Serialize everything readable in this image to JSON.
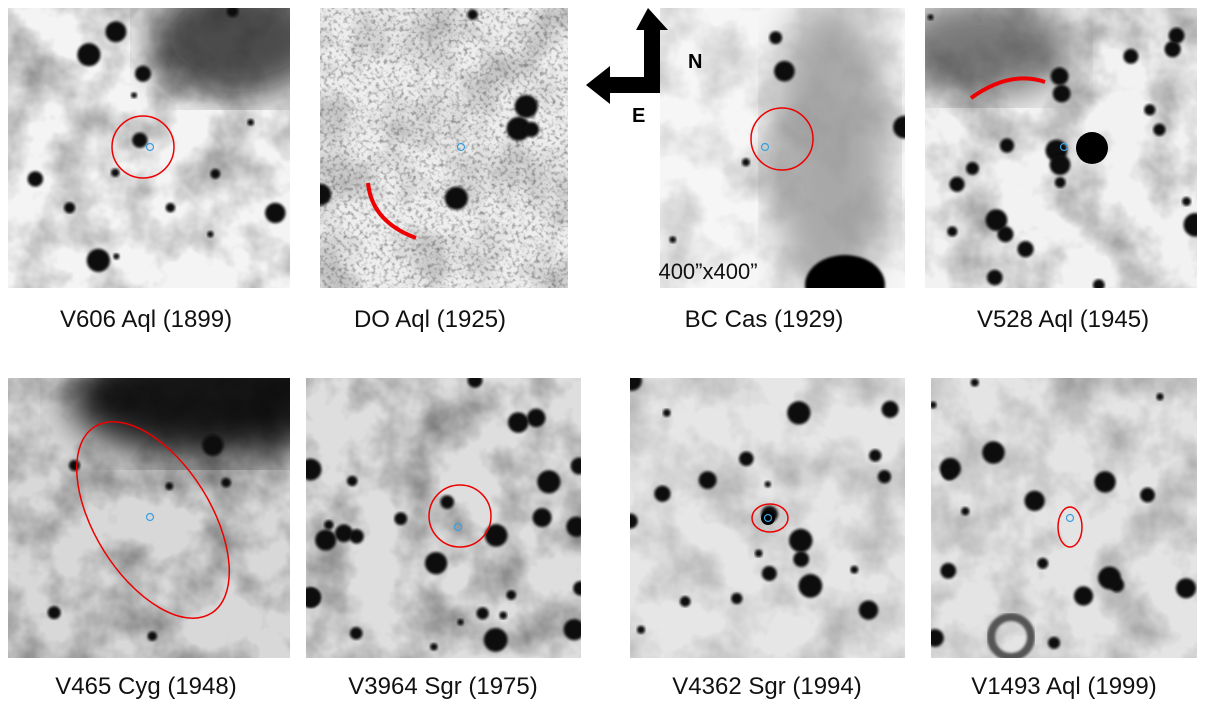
{
  "panels": [
    {
      "label": "V606 Aql (1899)"
    },
    {
      "label": "DO Aql (1925)"
    },
    {
      "label": "BC Cas (1929)"
    },
    {
      "label": "V528 Aql (1945)"
    },
    {
      "label": "V465 Cyg (1948)"
    },
    {
      "label": "V3964 Sgr (1975)"
    },
    {
      "label": "V4362 Sgr (1994)"
    },
    {
      "label": "V1493 Aql (1999)"
    }
  ],
  "compass": {
    "north": "N",
    "east": "E"
  },
  "scale": "400”x400”"
}
